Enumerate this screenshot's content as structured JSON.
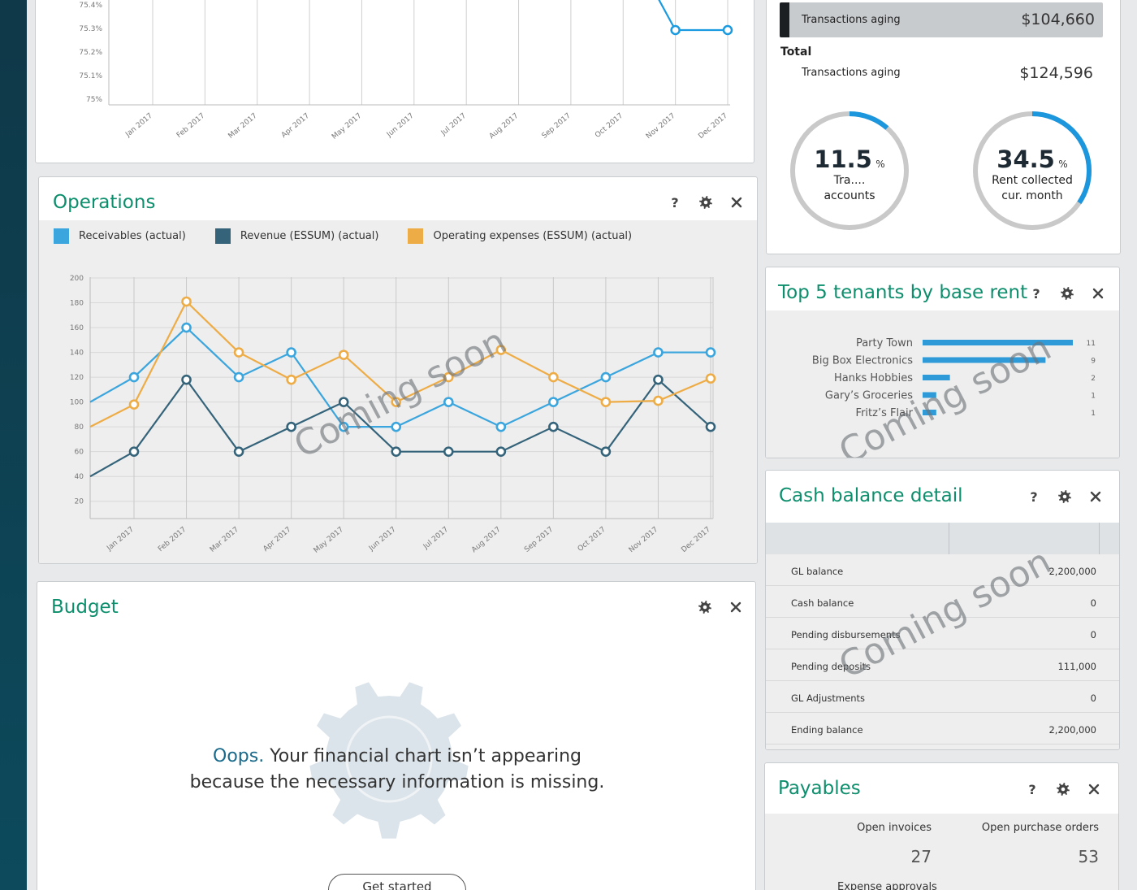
{
  "top_chart": {
    "y_ticks": [
      "75.4%",
      "75.3%",
      "75.2%",
      "75.1%",
      "75%"
    ],
    "x_ticks": [
      "Jan 2017",
      "Feb 2017",
      "Mar 2017",
      "Apr 2017",
      "May 2017",
      "Jun 2017",
      "Jul 2017",
      "Aug 2017",
      "Sep 2017",
      "Oct 2017",
      "Nov 2017",
      "Dec 2017"
    ],
    "series_color": "#1a9ae0"
  },
  "aging": {
    "current_label": "Transactions aging",
    "current_value": "$104,660",
    "total_heading": "Total",
    "total_label": "Transactions aging",
    "total_value": "$124,596",
    "gauge1": {
      "value": "11.5",
      "unit": "%",
      "line1": "Tra....",
      "line2": "accounts",
      "fraction": 0.115
    },
    "gauge2": {
      "value": "34.5",
      "unit": "%",
      "line1": "Rent collected",
      "line2": "cur. month",
      "fraction": 0.345
    }
  },
  "operations": {
    "title": "Operations",
    "help_glyph": "?",
    "legend": [
      {
        "name": "Receivables (actual)",
        "color": "#3ba5dd"
      },
      {
        "name": "Revenue (ESSUM) (actual)",
        "color": "#34637a"
      },
      {
        "name": "Operating expenses (ESSUM) (actual)",
        "color": "#eeac46"
      }
    ],
    "watermark": "Coming soon"
  },
  "chart_data": {
    "type": "line",
    "x": [
      "Jan 2017",
      "Feb 2017",
      "Mar 2017",
      "Apr 2017",
      "May 2017",
      "Jun 2017",
      "Jul 2017",
      "Aug 2017",
      "Sep 2017",
      "Oct 2017",
      "Nov 2017",
      "Dec 2017"
    ],
    "y_ticks": [
      "200",
      "180",
      "160",
      "140",
      "120",
      "100",
      "80",
      "60",
      "40",
      "20"
    ],
    "ylim": [
      0,
      200
    ],
    "grid": true,
    "legend_position": "top-left",
    "series": [
      {
        "name": "Receivables (actual)",
        "color": "#3ba5dd",
        "start": 100,
        "values": [
          120,
          160,
          120,
          140,
          80,
          80,
          100,
          80,
          100,
          120,
          140,
          140
        ]
      },
      {
        "name": "Revenue (ESSUM) (actual)",
        "color": "#34637a",
        "start": 40,
        "values": [
          60,
          118,
          60,
          80,
          100,
          60,
          60,
          60,
          80,
          60,
          118,
          80
        ]
      },
      {
        "name": "Operating expenses (ESSUM) (actual)",
        "color": "#eeac46",
        "start": 80,
        "values": [
          98,
          181,
          140,
          118,
          138,
          100,
          120,
          142,
          120,
          100,
          101,
          119
        ]
      }
    ]
  },
  "budget": {
    "title": "Budget",
    "message_highlight": "Oops.",
    "message_rest": " Your financial chart isn’t appearing",
    "message_line2": "because the necessary information is missing.",
    "button_label": "Get started"
  },
  "tenants": {
    "title": "Top 5 tenants by base rent",
    "help_glyph": "?",
    "items": [
      {
        "name": "Party Town",
        "value": 11,
        "label": "11"
      },
      {
        "name": "Big Box Electronics",
        "value": 9,
        "label": "9"
      },
      {
        "name": "Hanks Hobbies",
        "value": 2,
        "label": "2"
      },
      {
        "name": "Gary’s Groceries",
        "value": 1,
        "label": "1"
      },
      {
        "name": "Fritz’s Flair",
        "value": 1,
        "label": "1"
      }
    ],
    "bar_color": "#2e9ad8",
    "watermark": "Coming soon"
  },
  "cash": {
    "title": "Cash balance detail",
    "help_glyph": "?",
    "rows": [
      {
        "label": "GL balance",
        "value": "2,200,000"
      },
      {
        "label": "Cash balance",
        "value": "0"
      },
      {
        "label": "Pending disbursements",
        "value": "0"
      },
      {
        "label": "Pending deposits",
        "value": "111,000"
      },
      {
        "label": "GL Adjustments",
        "value": "0"
      },
      {
        "label": "Ending balance",
        "value": "2,200,000"
      }
    ],
    "watermark": "Coming soon"
  },
  "payables": {
    "title": "Payables",
    "help_glyph": "?",
    "open_invoices_label": "Open invoices",
    "open_invoices_value": "27",
    "open_po_label": "Open purchase orders",
    "open_po_value": "53",
    "expense_label": "Expense approvals"
  }
}
